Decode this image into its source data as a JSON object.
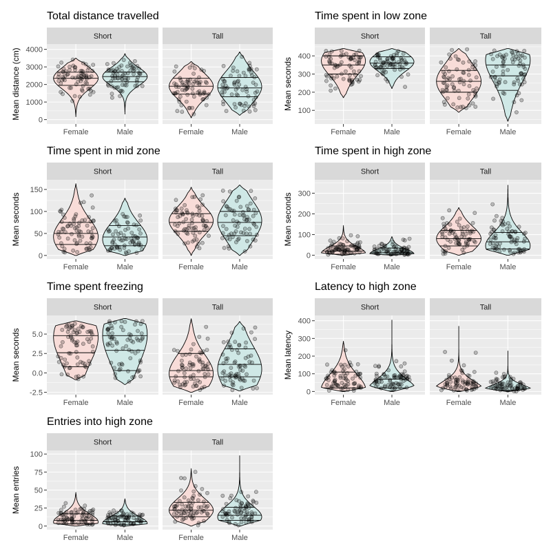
{
  "figure": {
    "colors": {
      "female_fill": "#f8dcd8",
      "male_fill": "#cfe8e6",
      "strip_bg": "#d9d9d9",
      "panel_bg": "#ebebeb",
      "grid": "#ffffff",
      "point": "#000000",
      "text": "#4d4d4d"
    },
    "facets": [
      "Short",
      "Tall"
    ],
    "groups": [
      "Female",
      "Male"
    ]
  },
  "chart_data": [
    {
      "type": "violin",
      "title": "Total distance travelled",
      "ylabel": "Mean distance (cm)",
      "ylim": [
        -250,
        4300
      ],
      "yticks": [
        0,
        1000,
        2000,
        3000,
        4000
      ],
      "ytick_labels": [
        "0",
        "1000",
        "2000",
        "3000",
        "4000"
      ],
      "panels": [
        {
          "facet": "Short",
          "series": [
            {
              "name": "Female",
              "min": 150,
              "max": 3500,
              "quartiles": [
                1950,
                2350,
                2700
              ],
              "mode": 2350
            },
            {
              "name": "Male",
              "min": 300,
              "max": 3750,
              "quartiles": [
                2150,
                2450,
                2700
              ],
              "mode": 2450
            }
          ]
        },
        {
          "facet": "Tall",
          "series": [
            {
              "name": "Female",
              "min": 100,
              "max": 3300,
              "quartiles": [
                1450,
                1900,
                2350
              ],
              "mode": 1900
            },
            {
              "name": "Male",
              "min": 250,
              "max": 3850,
              "quartiles": [
                1300,
                1800,
                2400
              ],
              "mode": 1900
            }
          ]
        }
      ]
    },
    {
      "type": "violin",
      "title": "Time spent in low zone",
      "ylabel": "Mean seconds",
      "ylim": [
        25,
        465
      ],
      "yticks": [
        100,
        200,
        300,
        400
      ],
      "ytick_labels": [
        "100",
        "200",
        "300",
        "400"
      ],
      "panels": [
        {
          "facet": "Short",
          "series": [
            {
              "name": "Female",
              "min": 170,
              "max": 440,
              "quartiles": [
                300,
                350,
                400
              ],
              "mode": 380
            },
            {
              "name": "Male",
              "min": 220,
              "max": 440,
              "quartiles": [
                330,
                360,
                395
              ],
              "mode": 370
            }
          ]
        },
        {
          "facet": "Tall",
          "series": [
            {
              "name": "Female",
              "min": 90,
              "max": 440,
              "quartiles": [
                200,
                260,
                320
              ],
              "mode": 260
            },
            {
              "name": "Male",
              "min": 40,
              "max": 440,
              "quartiles": [
                210,
                290,
                350
              ],
              "mode": 400
            }
          ]
        }
      ]
    },
    {
      "type": "violin",
      "title": "Time spent in mid zone",
      "ylabel": "Mean seconds",
      "ylim": [
        -8,
        172
      ],
      "yticks": [
        0,
        50,
        100,
        150
      ],
      "ytick_labels": [
        "0",
        "50",
        "100",
        "150"
      ],
      "panels": [
        {
          "facet": "Short",
          "series": [
            {
              "name": "Female",
              "min": 0,
              "max": 163,
              "quartiles": [
                25,
                50,
                75
              ],
              "mode": 40
            },
            {
              "name": "Male",
              "min": 0,
              "max": 130,
              "quartiles": [
                22,
                42,
                68
              ],
              "mode": 35
            }
          ]
        },
        {
          "facet": "Tall",
          "series": [
            {
              "name": "Female",
              "min": 0,
              "max": 155,
              "quartiles": [
                55,
                75,
                95
              ],
              "mode": 80
            },
            {
              "name": "Male",
              "min": 0,
              "max": 160,
              "quartiles": [
                45,
                75,
                100
              ],
              "mode": 80
            }
          ]
        }
      ]
    },
    {
      "type": "violin",
      "title": "Time spent in high zone",
      "ylabel": "Mean seconds",
      "ylim": [
        -18,
        365
      ],
      "yticks": [
        0,
        100,
        200,
        300
      ],
      "ytick_labels": [
        "0",
        "100",
        "200",
        "300"
      ],
      "panels": [
        {
          "facet": "Short",
          "series": [
            {
              "name": "Female",
              "min": 0,
              "max": 145,
              "quartiles": [
                5,
                20,
                45
              ],
              "mode": 5
            },
            {
              "name": "Male",
              "min": 0,
              "max": 90,
              "quartiles": [
                3,
                12,
                35
              ],
              "mode": 3
            }
          ]
        },
        {
          "facet": "Tall",
          "series": [
            {
              "name": "Female",
              "min": 0,
              "max": 230,
              "quartiles": [
                45,
                80,
                120
              ],
              "mode": 80
            },
            {
              "name": "Male",
              "min": 0,
              "max": 340,
              "quartiles": [
                30,
                65,
                110
              ],
              "mode": 40
            }
          ]
        }
      ]
    },
    {
      "type": "violin",
      "title": "Time spent freezing",
      "ylabel": "Mean seconds",
      "ylim": [
        -2.8,
        7.4
      ],
      "yticks": [
        -2.5,
        0,
        2.5,
        5
      ],
      "ytick_labels": [
        "-2.5",
        "0.0",
        "2.5",
        "5.0"
      ],
      "panels": [
        {
          "facet": "Short",
          "series": [
            {
              "name": "Female",
              "min": -0.9,
              "max": 6.7,
              "quartiles": [
                0.8,
                2.6,
                4.8
              ],
              "mode": 5.2
            },
            {
              "name": "Male",
              "min": -1.5,
              "max": 7.0,
              "quartiles": [
                0.3,
                2.9,
                4.8
              ],
              "mode": 5.5
            }
          ]
        },
        {
          "facet": "Tall",
          "series": [
            {
              "name": "Female",
              "min": -2.5,
              "max": 7.0,
              "quartiles": [
                -0.5,
                0.3,
                2.5
              ],
              "mode": -0.2
            },
            {
              "name": "Male",
              "min": -2.3,
              "max": 6.6,
              "quartiles": [
                -0.5,
                1.1,
                3.1
              ],
              "mode": 0.3
            }
          ]
        }
      ]
    },
    {
      "type": "violin",
      "title": "Latency to high zone",
      "ylabel": "Mean latency",
      "ylim": [
        -18,
        430
      ],
      "yticks": [
        0,
        100,
        200,
        300,
        400
      ],
      "ytick_labels": [
        "0",
        "100",
        "200",
        "300",
        "400"
      ],
      "panels": [
        {
          "facet": "Short",
          "series": [
            {
              "name": "Female",
              "min": 0,
              "max": 285,
              "quartiles": [
                3,
                20,
                110
              ],
              "mode": 5
            },
            {
              "name": "Male",
              "min": 0,
              "max": 405,
              "quartiles": [
                3,
                20,
                70
              ],
              "mode": 5
            }
          ]
        },
        {
          "facet": "Tall",
          "series": [
            {
              "name": "Female",
              "min": 0,
              "max": 370,
              "quartiles": [
                0,
                1,
                3
              ],
              "mode": 0
            },
            {
              "name": "Male",
              "min": 0,
              "max": 230,
              "quartiles": [
                0,
                2,
                6
              ],
              "mode": 0
            }
          ]
        }
      ]
    },
    {
      "type": "violin",
      "title": "Entries into high zone",
      "ylabel": "Mean entries",
      "ylim": [
        -5,
        105
      ],
      "yticks": [
        0,
        25,
        50,
        75,
        100
      ],
      "ytick_labels": [
        "0",
        "25",
        "50",
        "75",
        "100"
      ],
      "panels": [
        {
          "facet": "Short",
          "series": [
            {
              "name": "Female",
              "min": 0,
              "max": 47,
              "quartiles": [
                3,
                8,
                17
              ],
              "mode": 5
            },
            {
              "name": "Male",
              "min": 0,
              "max": 38,
              "quartiles": [
                2,
                6,
                14
              ],
              "mode": 3
            }
          ]
        },
        {
          "facet": "Tall",
          "series": [
            {
              "name": "Female",
              "min": 0,
              "max": 80,
              "quartiles": [
                13,
                22,
                33
              ],
              "mode": 22
            },
            {
              "name": "Male",
              "min": 0,
              "max": 98,
              "quartiles": [
                8,
                15,
                26
              ],
              "mode": 12
            }
          ]
        }
      ]
    }
  ]
}
